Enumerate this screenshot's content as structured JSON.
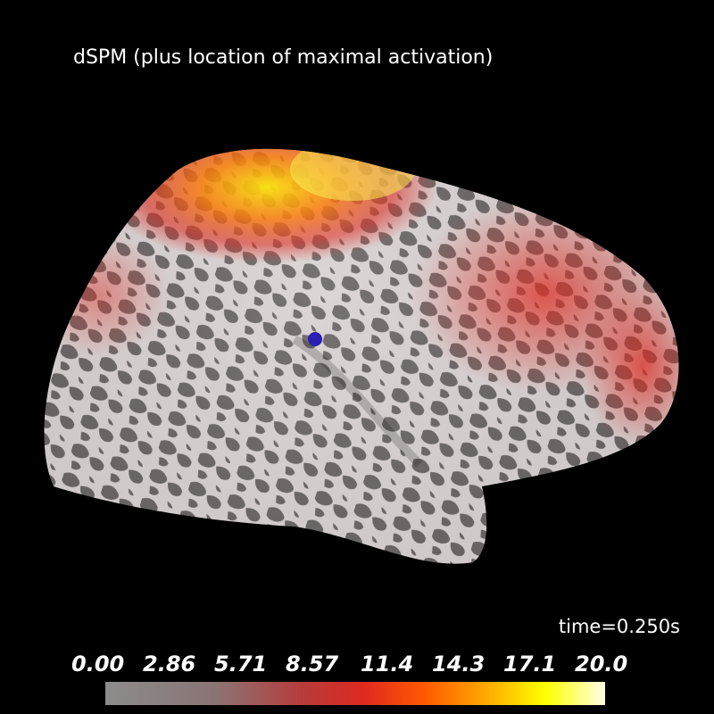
{
  "title": "dSPM (plus location of maximal activation)",
  "time_label": "time=0.250s",
  "colorbar": {
    "labels": [
      "0.00",
      "2.86",
      "5.71",
      "8.57",
      "11.4",
      "14.3",
      "17.1",
      "20.0"
    ],
    "colors": [
      "#8c8c8c",
      "#b83a3a",
      "#e02a1f",
      "#ff5a00",
      "#ffa800",
      "#ffff00",
      "#ffffe8"
    ]
  },
  "marker": {
    "color": "#2a1fb0",
    "meaning": "location of maximal activation"
  },
  "colors": {
    "background": "#000000",
    "surface_light": "#d9d2d2",
    "surface_dark": "#6b6666"
  }
}
